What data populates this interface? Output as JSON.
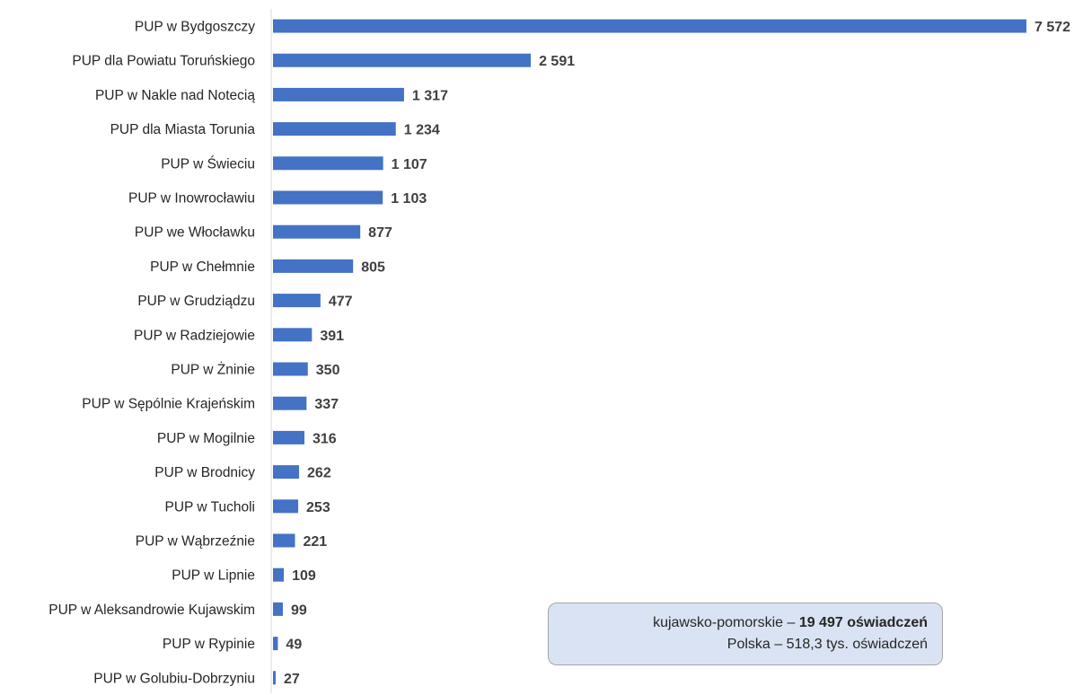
{
  "chart_data": {
    "type": "bar",
    "orientation": "horizontal",
    "categories": [
      "PUP w Bydgoszczy",
      "PUP dla Powiatu Toruńskiego",
      "PUP w Nakle nad Notecią",
      "PUP dla Miasta Torunia",
      "PUP w Świeciu",
      "PUP w Inowrocławiu",
      "PUP we Włocławku",
      "PUP w Chełmnie",
      "PUP w Grudziądzu",
      "PUP w Radziejowie",
      "PUP w Żninie",
      "PUP w Sępólnie Krajeńskim",
      "PUP w Mogilnie",
      "PUP w Brodnicy",
      "PUP w Tucholi",
      "PUP w Wąbrzeźnie",
      "PUP w Lipnie",
      "PUP w Aleksandrowie Kujawskim",
      "PUP w Rypinie",
      "PUP w Golubiu-Dobrzyniu"
    ],
    "values": [
      7572,
      2591,
      1317,
      1234,
      1107,
      1103,
      877,
      805,
      477,
      391,
      350,
      337,
      316,
      262,
      253,
      221,
      109,
      99,
      49,
      27
    ],
    "value_labels": [
      "7 572",
      "2 591",
      "1 317",
      "1 234",
      "1 107",
      "1 103",
      "877",
      "805",
      "477",
      "391",
      "350",
      "337",
      "316",
      "262",
      "253",
      "221",
      "109",
      "99",
      "49",
      "27"
    ],
    "bar_color": "#4472c4",
    "xlim": [
      0,
      7572
    ],
    "grid": false,
    "title": "",
    "xlabel": "",
    "ylabel": ""
  },
  "summary": {
    "region_prefix": "kujawsko-pomorskie – ",
    "region_value": "19 497 oświadczeń",
    "poland": "Polska – 518,3 tys. oświadczeń"
  }
}
